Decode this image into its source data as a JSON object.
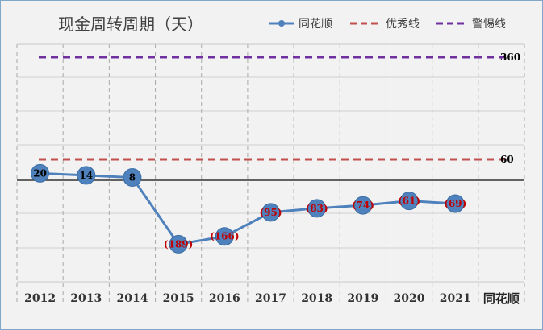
{
  "chart_data": {
    "type": "line",
    "title": "现金周转周期（天）",
    "categories": [
      "2012",
      "2013",
      "2014",
      "2015",
      "2016",
      "2017",
      "2018",
      "2019",
      "2020",
      "2021"
    ],
    "category_row_label": "同花顺",
    "series": [
      {
        "name": "同花顺",
        "values": [
          20,
          14,
          8,
          -189,
          -166,
          -95,
          -83,
          -74,
          -61,
          -69
        ],
        "labels": [
          "20",
          "14",
          "8",
          "(189)",
          "(166)",
          "(95)",
          "(83)",
          "(74)",
          "(61)",
          "(69)"
        ],
        "color": "#4f81bd",
        "style": "solid-marker"
      },
      {
        "name": "优秀线",
        "constant": 60,
        "label": "60",
        "color": "#c0504d",
        "style": "dashed"
      },
      {
        "name": "警惕线",
        "constant": 360,
        "label": "360",
        "color": "#7030a0",
        "style": "dashed"
      }
    ],
    "positive_label_color": "#000000",
    "negative_label_color": "#c00000",
    "legend_position": "top-right",
    "grid": true
  }
}
